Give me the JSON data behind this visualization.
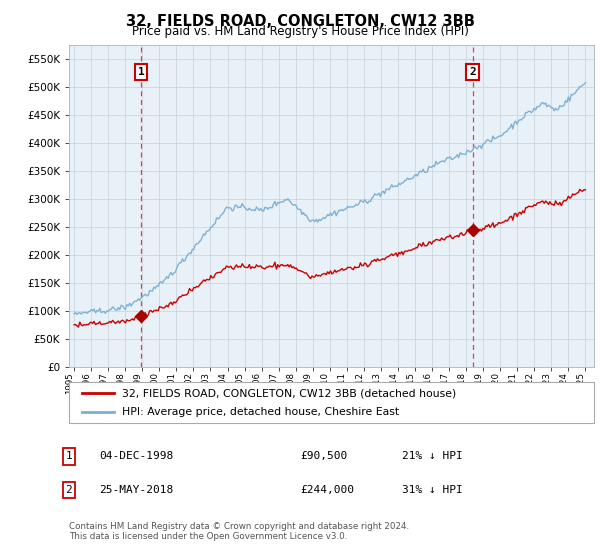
{
  "title": "32, FIELDS ROAD, CONGLETON, CW12 3BB",
  "subtitle": "Price paid vs. HM Land Registry's House Price Index (HPI)",
  "legend_line1": "32, FIELDS ROAD, CONGLETON, CW12 3BB (detached house)",
  "legend_line2": "HPI: Average price, detached house, Cheshire East",
  "footnote": "Contains HM Land Registry data © Crown copyright and database right 2024.\nThis data is licensed under the Open Government Licence v3.0.",
  "transaction1_date": "04-DEC-1998",
  "transaction1_price": "£90,500",
  "transaction1_hpi": "21% ↓ HPI",
  "transaction1_year": 1998.92,
  "transaction1_value": 90500,
  "transaction2_date": "25-MAY-2018",
  "transaction2_price": "£244,000",
  "transaction2_hpi": "31% ↓ HPI",
  "transaction2_year": 2018.38,
  "transaction2_value": 244000,
  "hpi_color": "#7aafd4",
  "price_color": "#cc0000",
  "marker_color": "#aa0000",
  "vline_color": "#dd4444",
  "plot_bg": "#e8f0f8",
  "grid_color": "#c8d0d8",
  "ylim": [
    0,
    575000
  ],
  "xlim_start": 1994.7,
  "xlim_end": 2025.5
}
